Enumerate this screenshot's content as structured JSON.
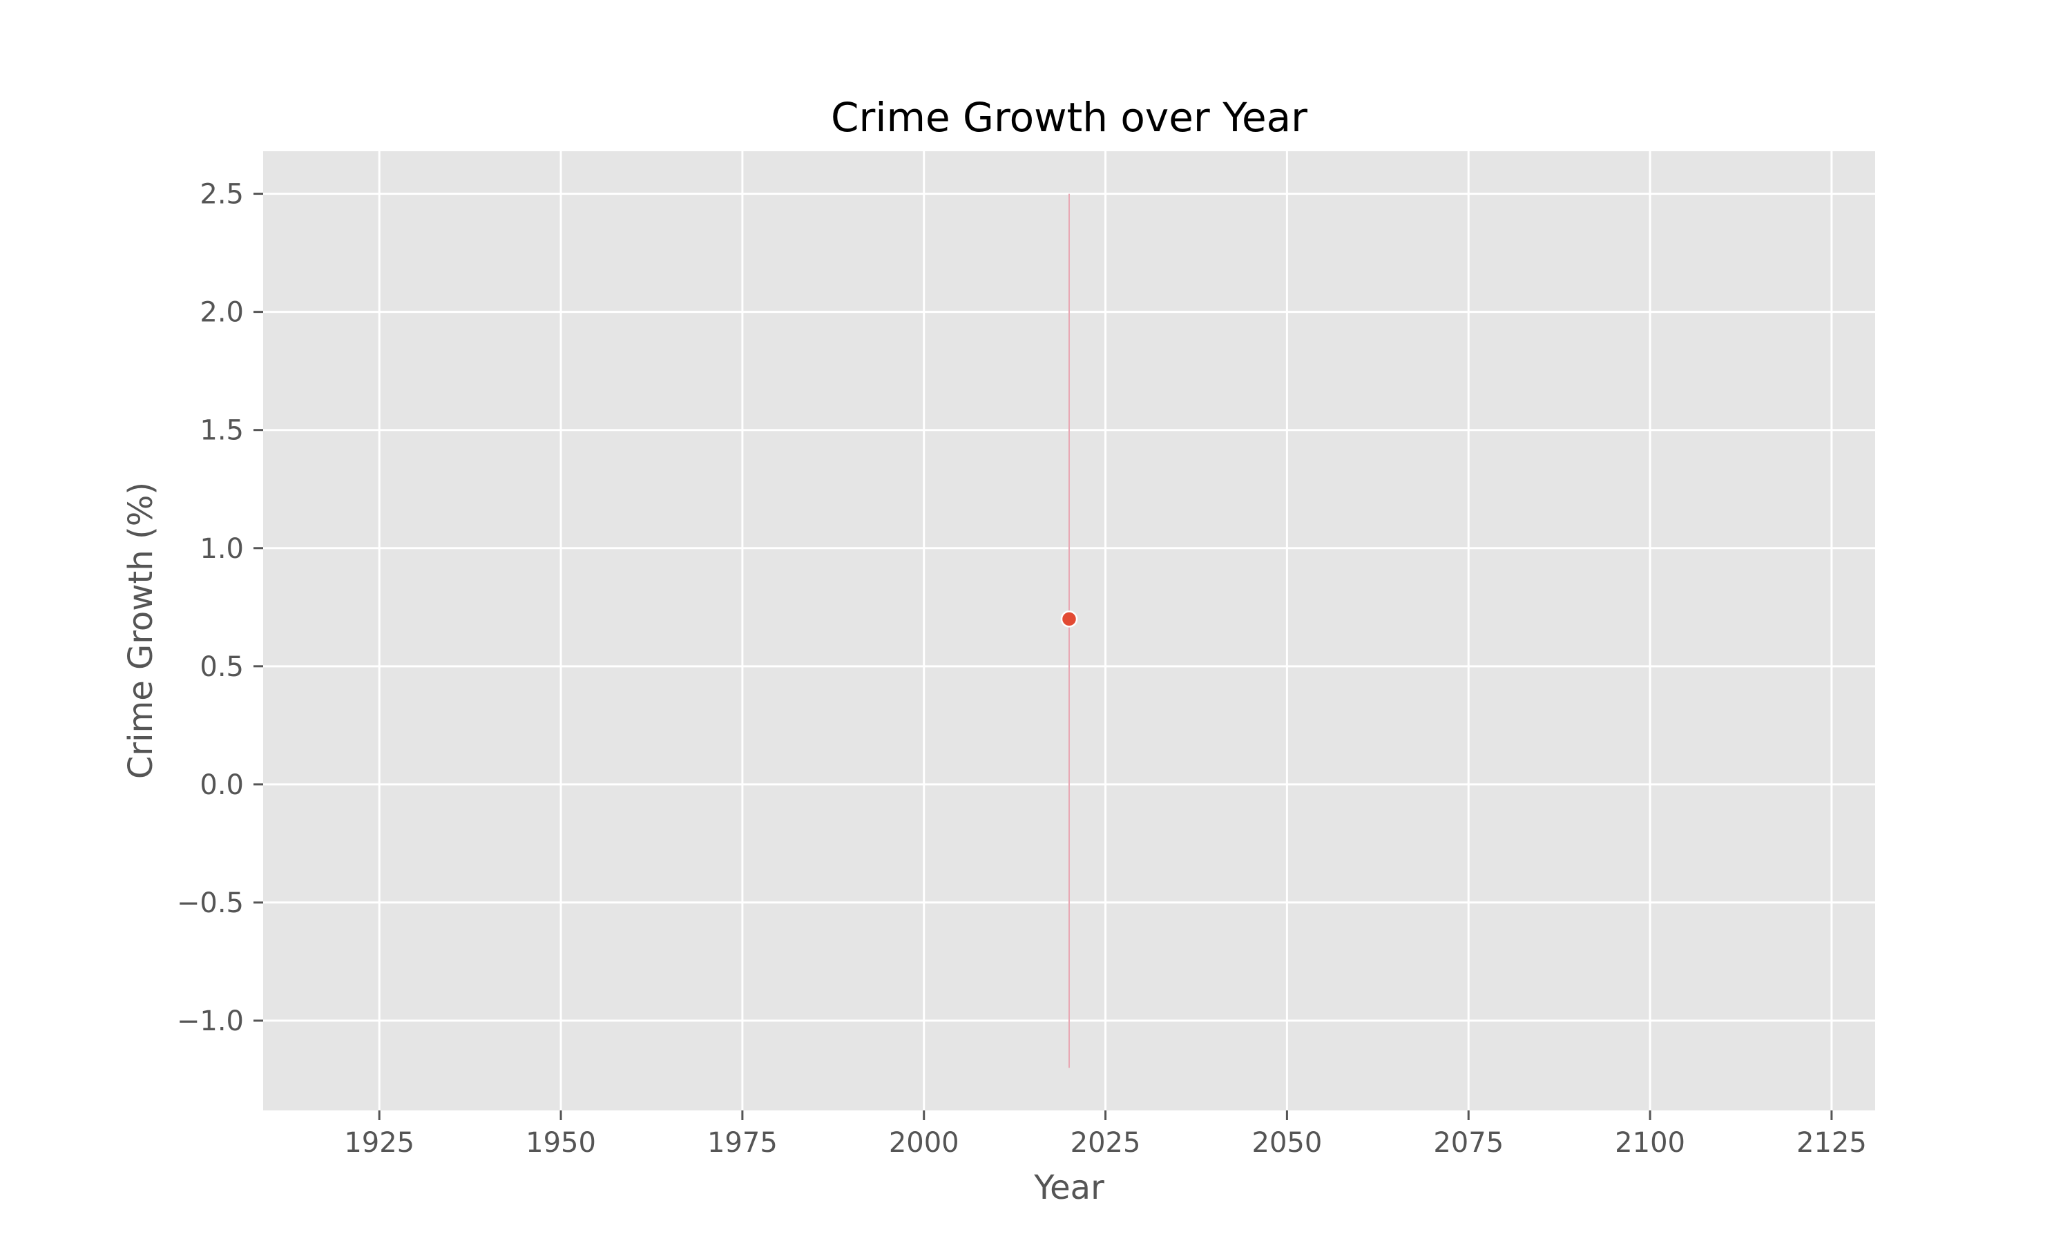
{
  "chart_data": {
    "type": "scatter",
    "title": "Crime Growth over Year",
    "xlabel": "Year",
    "ylabel": "Crime Growth (%)",
    "xlim": [
      1909,
      2131
    ],
    "ylim": [
      -1.38,
      2.68
    ],
    "xticks": [
      1925,
      1950,
      1975,
      2000,
      2025,
      2050,
      2075,
      2100,
      2125
    ],
    "xtick_labels": [
      "1925",
      "1950",
      "1975",
      "2000",
      "2025",
      "2050",
      "2075",
      "2100",
      "2125"
    ],
    "yticks": [
      2.5,
      2.0,
      1.5,
      1.0,
      0.5,
      0.0,
      -0.5,
      -1.0
    ],
    "ytick_labels": [
      "2.5",
      "2.0",
      "1.5",
      "1.0",
      "0.5",
      "0.0",
      "−0.5",
      "−1.0"
    ],
    "grid": true,
    "series": [
      {
        "points": [
          {
            "x": 2020,
            "y": 0.7,
            "y_low": -1.2,
            "y_high": 2.5
          }
        ]
      }
    ],
    "colors": {
      "background": "#E5E5E5",
      "grid": "#FFFFFF",
      "point": "#E24A33",
      "errorbar": "#E8A9B5",
      "text": "#555555",
      "title": "#000000"
    }
  }
}
